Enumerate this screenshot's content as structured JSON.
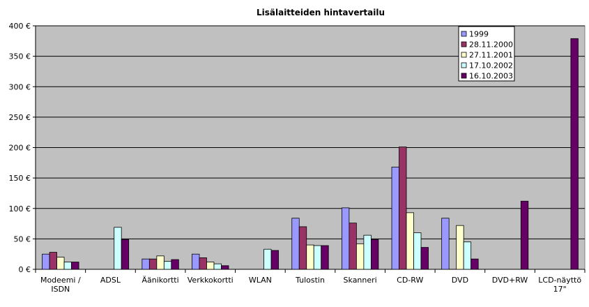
{
  "chart_data": {
    "type": "bar",
    "title": "Lisälaitteiden hintavertailu",
    "xlabel": "",
    "ylabel": "",
    "ylim": [
      0,
      400
    ],
    "y_ticks": [
      "0 €",
      "50 €",
      "100 €",
      "150 €",
      "200 €",
      "250 €",
      "300 €",
      "350 €",
      "400 €"
    ],
    "y_tick_values": [
      0,
      50,
      100,
      150,
      200,
      250,
      300,
      350,
      400
    ],
    "grid": true,
    "legend_position": "top-right",
    "categories": [
      [
        "Modeemi /",
        "ISDN"
      ],
      [
        "ADSL"
      ],
      [
        "Äänikortti"
      ],
      [
        "Verkkokortti"
      ],
      [
        "WLAN"
      ],
      [
        "Tulostin"
      ],
      [
        "Skanneri"
      ],
      [
        "CD-RW"
      ],
      [
        "DVD"
      ],
      [
        "DVD+RW"
      ],
      [
        "LCD-näyttö",
        "17\""
      ]
    ],
    "series": [
      {
        "name": "1999",
        "color": "#9999FF",
        "values": [
          25,
          0,
          17,
          25,
          0,
          84,
          101,
          168,
          84,
          0,
          0
        ]
      },
      {
        "name": "28.11.2000",
        "color": "#993366",
        "values": [
          28,
          0,
          17,
          19,
          0,
          70,
          76,
          201,
          0,
          0,
          0
        ]
      },
      {
        "name": "27.11.2001",
        "color": "#FFFFCC",
        "values": [
          20,
          0,
          22,
          12,
          0,
          40,
          42,
          93,
          72,
          0,
          0
        ]
      },
      {
        "name": "17.10.2002",
        "color": "#CCFFFF",
        "values": [
          12,
          69,
          13,
          9,
          33,
          39,
          56,
          60,
          45,
          0,
          0
        ]
      },
      {
        "name": "16.10.2003",
        "color": "#660066",
        "values": [
          12,
          49,
          16,
          6,
          31,
          39,
          49,
          36,
          17,
          112,
          379
        ]
      }
    ],
    "plot_background": "#C0C0C0"
  }
}
